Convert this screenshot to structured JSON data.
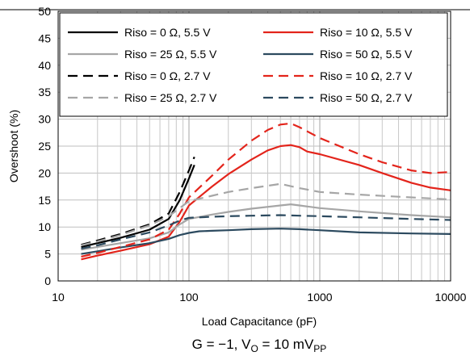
{
  "chart_data": {
    "type": "line",
    "xlabel": "Load Capacitance (pF)",
    "ylabel": "Overshoot (%)",
    "xscale": "log",
    "xlim": [
      10,
      10000
    ],
    "ylim": [
      0,
      50
    ],
    "x_ticks": [
      10,
      100,
      1000,
      10000
    ],
    "x_tick_labels": [
      "10",
      "100",
      "1000",
      "10000"
    ],
    "y_ticks": [
      0,
      5,
      10,
      15,
      20,
      25,
      30,
      35,
      40,
      45,
      50
    ],
    "y_tick_labels": [
      "0",
      "5",
      "10",
      "15",
      "20",
      "25",
      "30",
      "35",
      "40",
      "45",
      "50"
    ],
    "grid": true,
    "legend_position": "top",
    "caption": {
      "prefix": "G = −1, V",
      "sub1": "O",
      "mid": " = 10 mV",
      "sub2": "PP"
    },
    "series": [
      {
        "name": "Riso = 0 Ω, 5.5 V",
        "color": "#000000",
        "dash": "solid",
        "x": [
          15,
          20,
          30,
          50,
          70,
          85,
          100,
          110
        ],
        "y": [
          6.3,
          7.0,
          8.0,
          9.5,
          11.5,
          15.0,
          19.0,
          21.5
        ]
      },
      {
        "name": "Riso = 10 Ω, 5.5 V",
        "color": "#e3241b",
        "dash": "solid",
        "x": [
          15,
          20,
          30,
          50,
          70,
          85,
          100,
          150,
          200,
          300,
          400,
          500,
          600,
          700,
          800,
          1000,
          2000,
          3000,
          5000,
          7000,
          10000
        ],
        "y": [
          4.0,
          4.7,
          5.6,
          6.8,
          8.2,
          11.0,
          14.0,
          17.5,
          19.8,
          22.5,
          24.2,
          25.0,
          25.2,
          24.8,
          24.0,
          23.5,
          21.5,
          20.0,
          18.2,
          17.3,
          16.8
        ]
      },
      {
        "name": "Riso = 25 Ω, 5.5 V",
        "color": "#a6a6a6",
        "dash": "solid",
        "x": [
          15,
          20,
          30,
          50,
          70,
          85,
          100,
          150,
          200,
          300,
          500,
          600,
          700,
          1000,
          2000,
          5000,
          10000
        ],
        "y": [
          5.8,
          6.3,
          7.0,
          7.9,
          9.0,
          10.5,
          11.5,
          12.3,
          12.8,
          13.4,
          14.0,
          14.2,
          14.0,
          13.5,
          12.9,
          12.2,
          11.8
        ]
      },
      {
        "name": "Riso = 50 Ω, 5.5 V",
        "color": "#2c4a5f",
        "dash": "solid",
        "x": [
          15,
          20,
          30,
          50,
          70,
          85,
          100,
          120,
          150,
          200,
          300,
          500,
          700,
          1000,
          2000,
          5000,
          10000
        ],
        "y": [
          5.0,
          5.5,
          6.2,
          7.0,
          7.8,
          8.5,
          8.9,
          9.2,
          9.3,
          9.4,
          9.6,
          9.7,
          9.6,
          9.4,
          9.0,
          8.8,
          8.7
        ]
      },
      {
        "name": "Riso = 0 Ω, 2.7 V",
        "color": "#000000",
        "dash": "dash",
        "x": [
          15,
          20,
          30,
          50,
          70,
          85,
          100,
          110
        ],
        "y": [
          6.7,
          7.5,
          8.7,
          10.5,
          12.5,
          16.5,
          20.5,
          23.0
        ]
      },
      {
        "name": "Riso = 10 Ω, 2.7 V",
        "color": "#e3241b",
        "dash": "dash",
        "x": [
          15,
          20,
          30,
          50,
          70,
          85,
          100,
          150,
          200,
          300,
          400,
          500,
          600,
          700,
          1000,
          2000,
          3000,
          5000,
          7000,
          10000
        ],
        "y": [
          4.5,
          5.2,
          6.3,
          7.7,
          9.5,
          12.5,
          15.5,
          19.5,
          22.5,
          26.0,
          28.0,
          29.0,
          29.2,
          28.5,
          26.5,
          23.5,
          22.0,
          20.5,
          20.0,
          20.2
        ]
      },
      {
        "name": "Riso = 25 Ω, 2.7 V",
        "color": "#a6a6a6",
        "dash": "dash",
        "x": [
          15,
          20,
          30,
          50,
          70,
          85,
          100,
          150,
          200,
          300,
          500,
          700,
          1000,
          2000,
          5000,
          10000
        ],
        "y": [
          6.6,
          7.3,
          8.5,
          10.3,
          12.0,
          13.5,
          14.8,
          15.8,
          16.5,
          17.2,
          18.0,
          17.2,
          16.5,
          16.0,
          15.5,
          15.1
        ]
      },
      {
        "name": "Riso = 50 Ω, 2.7 V",
        "color": "#2c4a5f",
        "dash": "dash",
        "x": [
          15,
          20,
          30,
          50,
          70,
          85,
          100,
          150,
          200,
          300,
          500,
          700,
          1000,
          2000,
          5000,
          10000
        ],
        "y": [
          6.0,
          6.6,
          7.7,
          9.0,
          10.3,
          11.2,
          11.7,
          11.9,
          12.0,
          12.1,
          12.2,
          12.1,
          12.0,
          11.8,
          11.5,
          11.3
        ]
      }
    ]
  }
}
